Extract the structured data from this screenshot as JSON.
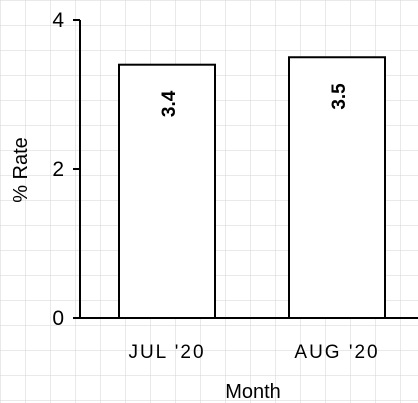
{
  "chart_data": {
    "type": "bar",
    "categories": [
      "JUL '20",
      "AUG '20"
    ],
    "values": [
      3.4,
      3.5
    ],
    "value_labels": [
      "3.4",
      "3.5"
    ],
    "title": "",
    "xlabel": "Month",
    "ylabel": "% Rate",
    "ylim": [
      0,
      4
    ],
    "yticks": [
      0,
      2,
      4
    ],
    "ytick_labels": [
      "0",
      "2",
      "4"
    ],
    "grid": false,
    "legend": "none",
    "colors": {
      "bar_fill": "#ffffff",
      "bar_stroke": "#000000",
      "axis": "#000000",
      "background_grid": "#d7d7d7"
    }
  }
}
